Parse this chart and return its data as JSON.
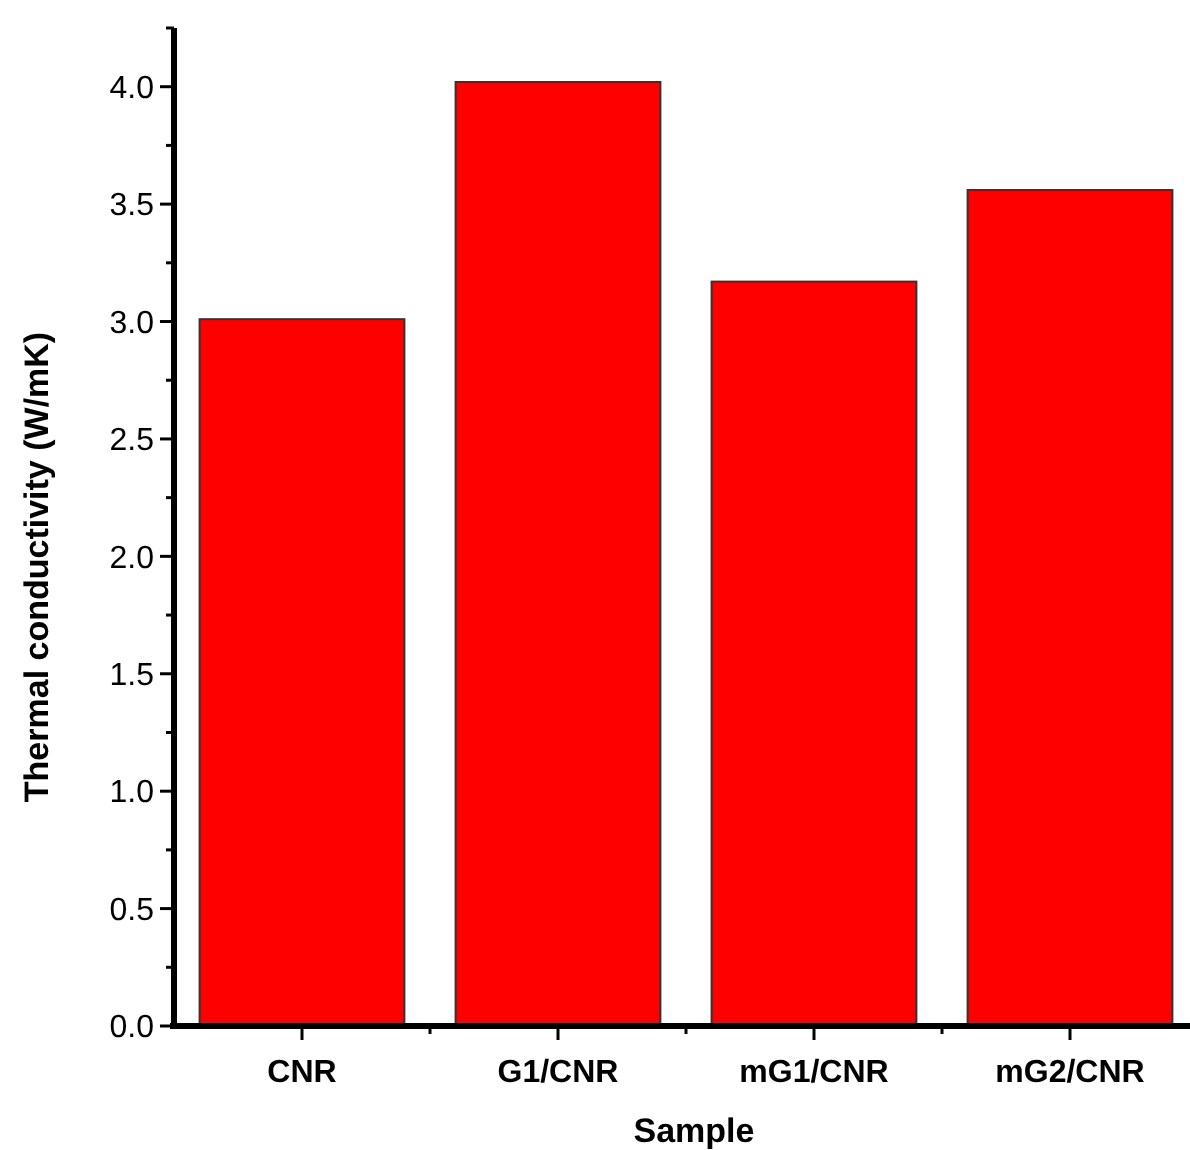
{
  "chart_data": {
    "type": "bar",
    "xlabel": "Sample",
    "ylabel": "Thermal conductivity (W/mK)",
    "categories": [
      "CNR",
      "G1/CNR",
      "mG1/CNR",
      "mG2/CNR"
    ],
    "values": [
      3.01,
      4.02,
      3.17,
      3.56
    ],
    "color": "#ff0000",
    "ylim": [
      0,
      4.25
    ],
    "yticks": [
      {
        "value": 0,
        "label": "0.0"
      },
      {
        "value": 0.25,
        "label": null
      },
      0.5,
      {
        "value": 0.75,
        "label": null
      },
      {
        "value": 1,
        "label": "1.0"
      },
      {
        "value": 1.25,
        "label": null
      },
      1.5,
      {
        "value": 1.75,
        "label": null
      },
      {
        "value": 2,
        "label": "2.0"
      },
      {
        "value": 2.25,
        "label": null
      },
      2.5,
      {
        "value": 2.75,
        "label": null
      },
      {
        "value": 3,
        "label": "3.0"
      },
      {
        "value": 3.25,
        "label": null
      },
      3.5,
      {
        "value": 3.75,
        "label": null
      },
      {
        "value": 4,
        "label": "4.0"
      },
      {
        "value": 4.25,
        "label": null
      }
    ],
    "grid": false
  }
}
